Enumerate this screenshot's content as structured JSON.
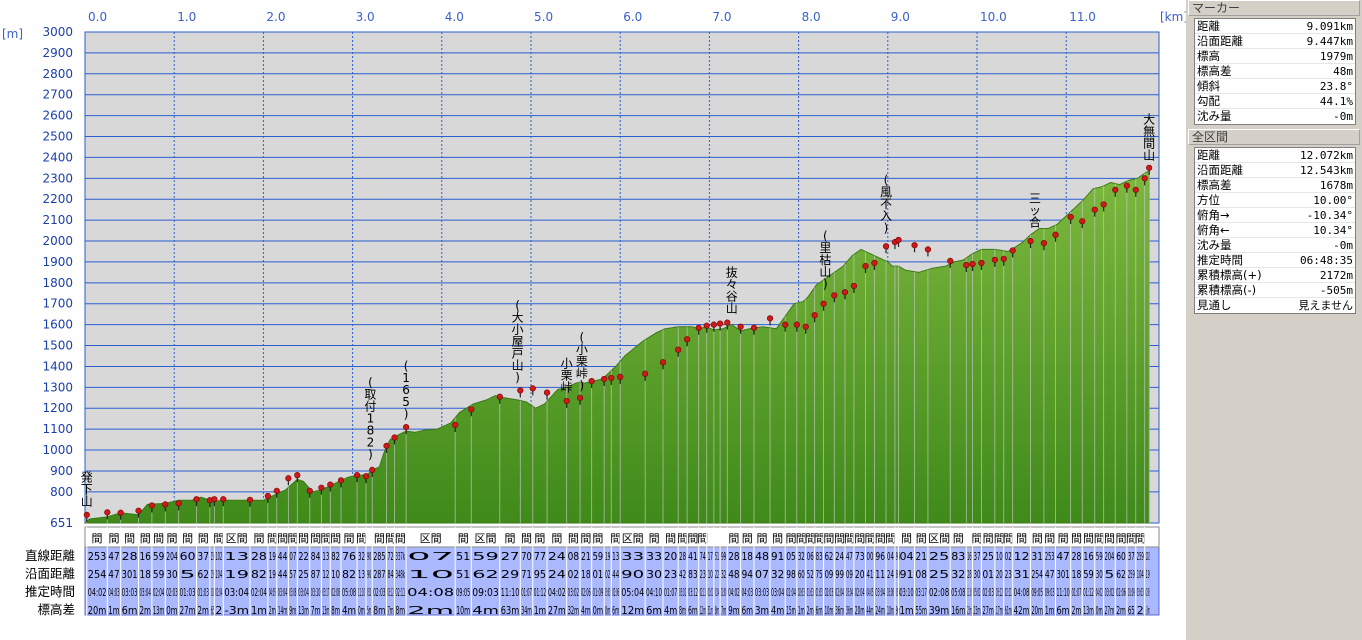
{
  "chart_data": {
    "type": "area",
    "xlabel": "",
    "ylabel": "",
    "x_unit": "[km]",
    "y_unit": "[m]",
    "xlim": [
      0,
      11.93
    ],
    "ylim": [
      651,
      3000
    ],
    "x_ticks": [
      "0.0",
      "1.0",
      "2.0",
      "3.0",
      "4.0",
      "5.0",
      "6.0",
      "7.0",
      "8.0",
      "9.0",
      "10.0",
      "11.0"
    ],
    "y_ticks": [
      "3000",
      "2900",
      "2800",
      "2700",
      "2600",
      "2500",
      "2400",
      "2300",
      "2200",
      "2100",
      "2000",
      "1900",
      "1800",
      "1700",
      "1600",
      "1500",
      "1400",
      "1300",
      "1200",
      "1100",
      "1000",
      "900",
      "800",
      "651"
    ],
    "grid": true,
    "profile": {
      "x": [
        0,
        0.05,
        0.25,
        0.4,
        0.6,
        0.7,
        0.9,
        1.05,
        1.2,
        1.3,
        1.4,
        1.45,
        1.55,
        2.0,
        2.1,
        2.25,
        2.38,
        2.45,
        2.55,
        2.65,
        2.75,
        2.85,
        2.95,
        3.05,
        3.15,
        3.25,
        3.3,
        3.35,
        3.42,
        3.5,
        3.6,
        3.7,
        3.8,
        3.95,
        4.1,
        4.2,
        4.35,
        4.5,
        4.6,
        4.7,
        4.85,
        4.95,
        5.05,
        5.15,
        5.3,
        5.4,
        5.5,
        5.55,
        5.6,
        5.7,
        5.8,
        5.95,
        6.05,
        6.25,
        6.4,
        6.5,
        6.65,
        6.8,
        6.9,
        6.95,
        7.05,
        7.15,
        7.25,
        7.35,
        7.45,
        7.6,
        7.75,
        7.85,
        7.95,
        8.05,
        8.1,
        8.2,
        8.3,
        8.4,
        8.5,
        8.6,
        8.7,
        8.8,
        8.9,
        9.0,
        9.05,
        9.12,
        9.2,
        9.35,
        9.5,
        9.65,
        9.75,
        9.85,
        9.95,
        10.05,
        10.2,
        10.35,
        10.5,
        10.6,
        10.7,
        10.8,
        10.9,
        11.0,
        11.1,
        11.2,
        11.3,
        11.4,
        11.5,
        11.6,
        11.7,
        11.8,
        11.9,
        11.93
      ],
      "y": [
        651,
        670,
        680,
        700,
        690,
        740,
        745,
        760,
        760,
        775,
        760,
        755,
        760,
        760,
        780,
        810,
        860,
        850,
        800,
        810,
        830,
        850,
        870,
        880,
        880,
        910,
        920,
        985,
        1050,
        1070,
        1090,
        1085,
        1095,
        1100,
        1130,
        1180,
        1220,
        1240,
        1260,
        1250,
        1240,
        1230,
        1200,
        1220,
        1290,
        1300,
        1320,
        1325,
        1320,
        1330,
        1340,
        1400,
        1450,
        1520,
        1560,
        1580,
        1590,
        1590,
        1580,
        1590,
        1575,
        1580,
        1600,
        1570,
        1580,
        1590,
        1580,
        1640,
        1700,
        1710,
        1730,
        1790,
        1820,
        1850,
        1880,
        1930,
        1960,
        1940,
        1920,
        1900,
        1880,
        1880,
        1860,
        1850,
        1870,
        1880,
        1900,
        1910,
        1940,
        1960,
        1960,
        1950,
        1990,
        2030,
        2060,
        2060,
        2080,
        2120,
        2160,
        2200,
        2250,
        2260,
        2280,
        2270,
        2290,
        2300,
        2330,
        2330
      ],
      "fill_color": "#6aa032",
      "fill_dark": "#3c7a14",
      "line_color": "#c8c8c8"
    },
    "markers": [
      [
        0.02,
        690
      ],
      [
        0.25,
        702
      ],
      [
        0.4,
        700
      ],
      [
        0.6,
        710
      ],
      [
        0.75,
        735
      ],
      [
        0.9,
        740
      ],
      [
        1.05,
        745
      ],
      [
        1.25,
        765
      ],
      [
        1.4,
        760
      ],
      [
        1.45,
        765
      ],
      [
        1.55,
        765
      ],
      [
        1.85,
        762
      ],
      [
        2.05,
        780
      ],
      [
        2.15,
        805
      ],
      [
        2.28,
        865
      ],
      [
        2.38,
        880
      ],
      [
        2.52,
        805
      ],
      [
        2.65,
        820
      ],
      [
        2.75,
        835
      ],
      [
        2.87,
        855
      ],
      [
        3.05,
        880
      ],
      [
        3.15,
        875
      ],
      [
        3.22,
        905
      ],
      [
        3.38,
        1020
      ],
      [
        3.47,
        1060
      ],
      [
        3.6,
        1110
      ],
      [
        4.15,
        1120
      ],
      [
        4.33,
        1195
      ],
      [
        4.65,
        1255
      ],
      [
        4.88,
        1285
      ],
      [
        5.02,
        1295
      ],
      [
        5.18,
        1275
      ],
      [
        5.4,
        1235
      ],
      [
        5.55,
        1250
      ],
      [
        5.68,
        1330
      ],
      [
        5.82,
        1340
      ],
      [
        5.9,
        1345
      ],
      [
        6.0,
        1350
      ],
      [
        6.28,
        1365
      ],
      [
        6.48,
        1420
      ],
      [
        6.65,
        1480
      ],
      [
        6.75,
        1530
      ],
      [
        6.88,
        1585
      ],
      [
        6.97,
        1595
      ],
      [
        7.05,
        1600
      ],
      [
        7.12,
        1605
      ],
      [
        7.2,
        1610
      ],
      [
        7.35,
        1590
      ],
      [
        7.5,
        1585
      ],
      [
        7.68,
        1630
      ],
      [
        7.85,
        1600
      ],
      [
        7.98,
        1600
      ],
      [
        8.08,
        1590
      ],
      [
        8.18,
        1645
      ],
      [
        8.28,
        1700
      ],
      [
        8.4,
        1740
      ],
      [
        8.52,
        1755
      ],
      [
        8.62,
        1785
      ],
      [
        8.75,
        1880
      ],
      [
        8.85,
        1895
      ],
      [
        8.98,
        1975
      ],
      [
        9.08,
        1995
      ],
      [
        9.12,
        2005
      ],
      [
        9.3,
        1980
      ],
      [
        9.45,
        1960
      ],
      [
        9.7,
        1905
      ],
      [
        9.88,
        1885
      ],
      [
        9.95,
        1890
      ],
      [
        10.05,
        1895
      ],
      [
        10.2,
        1910
      ],
      [
        10.3,
        1915
      ],
      [
        10.4,
        1955
      ],
      [
        10.6,
        2000
      ],
      [
        10.75,
        1990
      ],
      [
        10.88,
        2030
      ],
      [
        11.05,
        2115
      ],
      [
        11.18,
        2095
      ],
      [
        11.32,
        2150
      ],
      [
        11.42,
        2175
      ],
      [
        11.55,
        2245
      ],
      [
        11.68,
        2265
      ],
      [
        11.78,
        2245
      ],
      [
        11.88,
        2300
      ],
      [
        11.93,
        2350
      ]
    ],
    "annotations": [
      {
        "text": "発下山",
        "x": 0.02,
        "y": 715,
        "vertical": true
      },
      {
        "text": "(取付182)",
        "x": 3.2,
        "y": 940,
        "vertical": true
      },
      {
        "text": "(165)",
        "x": 3.6,
        "y": 1135,
        "vertical": true
      },
      {
        "text": "(大小屋戸山)",
        "x": 4.85,
        "y": 1310,
        "vertical": true
      },
      {
        "text": "小栗峠",
        "x": 5.4,
        "y": 1260,
        "vertical": true
      },
      {
        "text": "(小栗峠)",
        "x": 5.57,
        "y": 1270,
        "vertical": true
      },
      {
        "text": "抜々谷山",
        "x": 7.25,
        "y": 1640,
        "vertical": true
      },
      {
        "text": "(里枯山)",
        "x": 8.3,
        "y": 1755,
        "vertical": true
      },
      {
        "text": "(風不入)",
        "x": 8.98,
        "y": 2025,
        "vertical": true
      },
      {
        "text": "三ッ合",
        "x": 10.65,
        "y": 2050,
        "vertical": true
      },
      {
        "text": "大無間山",
        "x": 11.93,
        "y": 2370,
        "vertical": true
      }
    ]
  },
  "table": {
    "row_labels": [
      "直線距離",
      "沿面距離",
      "推定時間",
      "標高差"
    ],
    "header_text": "区間",
    "cell_samples": {
      "row1": [
        "253",
        "47",
        "28",
        "16",
        "59",
        "204",
        "60",
        "37",
        "259",
        "102",
        "13",
        "28",
        "19",
        "44",
        "07",
        "22",
        "84",
        "13",
        "82",
        "76",
        "32",
        "90",
        "285",
        "72",
        "337k",
        "07",
        "51",
        "59",
        "27",
        "70",
        "77",
        "24",
        "08",
        "21",
        "59",
        "19",
        "13",
        "33",
        "33",
        "20",
        "28",
        "41",
        "74",
        "17",
        "51",
        "99",
        "28",
        "18",
        "48",
        "91",
        "05",
        "32",
        "06",
        "83",
        "62",
        "24",
        "47",
        "73",
        "00",
        "96",
        "04",
        "94",
        "04",
        "21",
        "25",
        "83",
        "16",
        "37",
        "25",
        "10",
        "02",
        "12",
        "31"
      ],
      "row2": [
        "254",
        "47",
        "301",
        "18",
        "59",
        "30",
        "5",
        "62",
        "259",
        "104",
        "19",
        "82",
        "19",
        "44",
        "57",
        "25",
        "87",
        "12",
        "10",
        "82",
        "13",
        "90",
        "287",
        "84",
        "348k",
        "10",
        "51",
        "62",
        "29",
        "71",
        "95",
        "24",
        "02",
        "18",
        "01",
        "02",
        "44",
        "90",
        "30",
        "23",
        "42",
        "83",
        "23",
        "10",
        "22",
        "32",
        "48",
        "94",
        "07",
        "32",
        "98",
        "60",
        "52",
        "75",
        "09",
        "99",
        "09",
        "20",
        "41",
        "11",
        "24",
        "89",
        "91",
        "08",
        "25",
        "32",
        "28",
        "30",
        "01",
        "20",
        "23",
        "31"
      ],
      "row3": [
        "04:02",
        "04:03",
        "03:03",
        "03:04",
        "02:04",
        "02:03",
        "01:03",
        "01:03",
        "02:03",
        "02:04",
        "03:04",
        "02:04",
        "04:05",
        "03:04",
        "03:08",
        "03:04",
        "03:10",
        "03:17",
        "02:08",
        "05:08",
        "11:10",
        "05:02",
        "02:03",
        "03:12",
        "02:11",
        "04:08",
        "09:05",
        "09:03",
        "11:10",
        "01:07",
        "01:12",
        "04:02",
        "03:02",
        "02:06",
        "01:09",
        "03:03",
        "02:06",
        "05:04",
        "04:10",
        "01:07",
        "03:02",
        "03:12",
        "02:11",
        "01:02",
        "01:04",
        "02:00"
      ],
      "row4": [
        "20m",
        "1m",
        "6m",
        "2m",
        "13m",
        "0m",
        "27m",
        "2m",
        "65",
        "2",
        "-3m",
        "1m",
        "2m",
        "14m",
        "9m",
        "13m",
        "7m",
        "13m",
        "8m",
        "4m",
        "0m",
        "5m",
        "8m",
        "7m",
        "8m",
        "2m",
        "10m",
        "4m",
        "63m",
        "34m",
        "1m",
        "27m",
        "32m",
        "4m",
        "0m",
        "0m",
        "6m",
        "12m",
        "6m",
        "4m",
        "8m",
        "6m",
        "12m",
        "51m",
        "8m",
        "7m",
        "9m",
        "6m",
        "3m",
        "4m",
        "15m",
        "1m",
        "2m",
        "6m",
        "10m",
        "36m",
        "36m",
        "20m",
        "44m",
        "24m",
        "10m",
        "9m",
        "1m",
        "55m",
        "39m",
        "16m",
        "23m",
        "23m",
        "27m",
        "17m",
        "61m",
        "42m"
      ]
    }
  },
  "panel": {
    "marker_header": "マーカー",
    "marker_rows": [
      {
        "label": "距離",
        "value": "9.091km"
      },
      {
        "label": "沿面距離",
        "value": "9.447km"
      },
      {
        "label": "標高",
        "value": "1979m"
      },
      {
        "label": "標高差",
        "value": "48m"
      },
      {
        "label": "傾斜",
        "value": "23.8°"
      },
      {
        "label": "勾配",
        "value": "44.1%"
      },
      {
        "label": "沈み量",
        "value": "-0m"
      }
    ],
    "total_header": "全区間",
    "total_rows": [
      {
        "label": "距離",
        "value": "12.072km"
      },
      {
        "label": "沿面距離",
        "value": "12.543km"
      },
      {
        "label": "標高差",
        "value": "1678m"
      },
      {
        "label": "方位",
        "value": "10.00°"
      },
      {
        "label": "俯角→",
        "value": "-10.34°"
      },
      {
        "label": "俯角←",
        "value": "10.34°"
      },
      {
        "label": "沈み量",
        "value": "-0m"
      },
      {
        "label": "推定時間",
        "value": "06:48:35"
      },
      {
        "label": "累積標高(+)",
        "value": "2172m"
      },
      {
        "label": "累積標高(-)",
        "value": "-505m"
      },
      {
        "label": "見通し",
        "value": "見えません"
      }
    ]
  },
  "colors": {
    "grid": "#2a5fd0",
    "plot_bg": "#d8d8d8",
    "axis_text": "#3a5fcf",
    "table_bg": "#aab8ff",
    "marker": "#cc1a1a"
  }
}
